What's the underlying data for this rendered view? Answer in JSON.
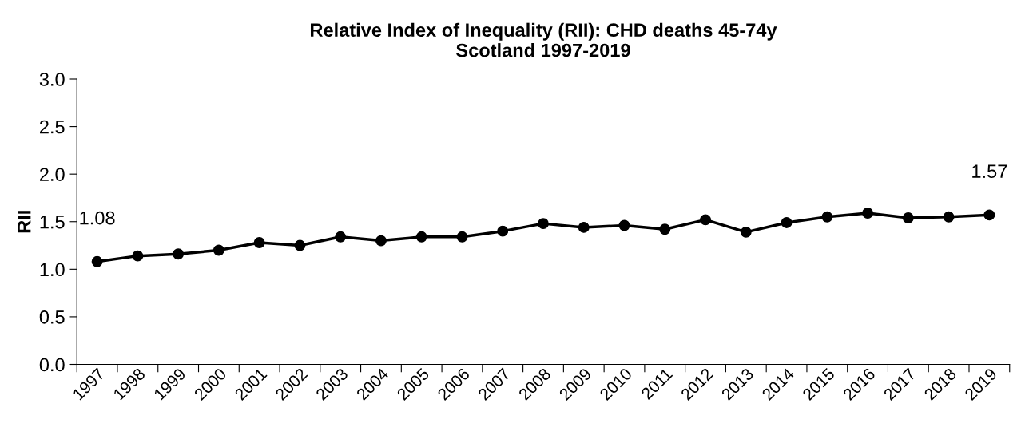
{
  "chart_data": {
    "type": "line",
    "title": "Relative Index of Inequality (RII): CHD deaths 45-74y\nScotland 1997-2019",
    "ylabel": "RII",
    "categories": [
      "1997",
      "1998",
      "1999",
      "2000",
      "2001",
      "2002",
      "2003",
      "2004",
      "2005",
      "2006",
      "2007",
      "2008",
      "2009",
      "2010",
      "2011",
      "2012",
      "2013",
      "2014",
      "2015",
      "2016",
      "2017",
      "2018",
      "2019"
    ],
    "series": [
      {
        "color": "#000000",
        "values": [
          1.08,
          1.14,
          1.16,
          1.2,
          1.28,
          1.25,
          1.34,
          1.3,
          1.34,
          1.34,
          1.4,
          1.48,
          1.44,
          1.46,
          1.42,
          1.52,
          1.39,
          1.49,
          1.55,
          1.59,
          1.54,
          1.55,
          1.57
        ],
        "value_labels": [
          "1.08",
          null,
          null,
          null,
          null,
          null,
          null,
          null,
          null,
          null,
          null,
          null,
          null,
          null,
          null,
          null,
          null,
          null,
          null,
          null,
          null,
          null,
          "1.57"
        ]
      }
    ],
    "ylim": [
      0,
      3
    ],
    "yticks": [
      "0.0",
      "0.5",
      "1.0",
      "1.5",
      "2.0",
      "2.5",
      "3.0"
    ],
    "marker": "circle",
    "line_style": "solid",
    "grid": false,
    "legend": false
  }
}
